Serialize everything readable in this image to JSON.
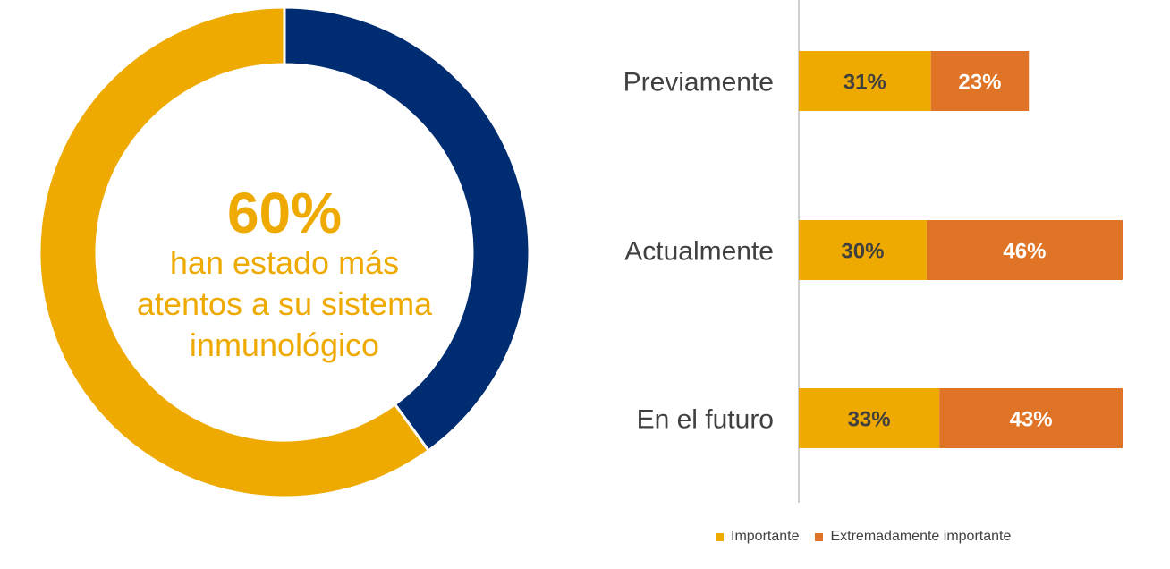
{
  "colors": {
    "navy": "#002D72",
    "gold": "#EEAA00",
    "orange": "#E07426",
    "axis": "#BFBFBF",
    "label_text": "#404040",
    "value_dark": "#404040",
    "value_light": "#FFFFFF"
  },
  "chart_data": [
    {
      "type": "pie",
      "variant": "donut",
      "slices": [
        {
          "value": 40,
          "color": "#002D72"
        },
        {
          "value": 60,
          "color": "#EEAA00"
        }
      ],
      "center_value": "60%",
      "center_caption": "han estado más\natentos a su sistema\ninmunológico"
    },
    {
      "type": "bar",
      "orientation": "horizontal",
      "stacked": true,
      "categories": [
        "Previamente",
        "Actualmente",
        "En el futuro"
      ],
      "series": [
        {
          "name": "Importante",
          "values": [
            31,
            30,
            33
          ],
          "labels": [
            "31%",
            "30%",
            "33%"
          ],
          "color": "#EEAA00"
        },
        {
          "name": "Extremadamente importante",
          "values": [
            23,
            46,
            43
          ],
          "labels": [
            "23%",
            "46%",
            "43%"
          ],
          "color": "#E07426"
        }
      ],
      "xlim": [
        0,
        76
      ],
      "grid": false,
      "legend": "bottom"
    }
  ]
}
